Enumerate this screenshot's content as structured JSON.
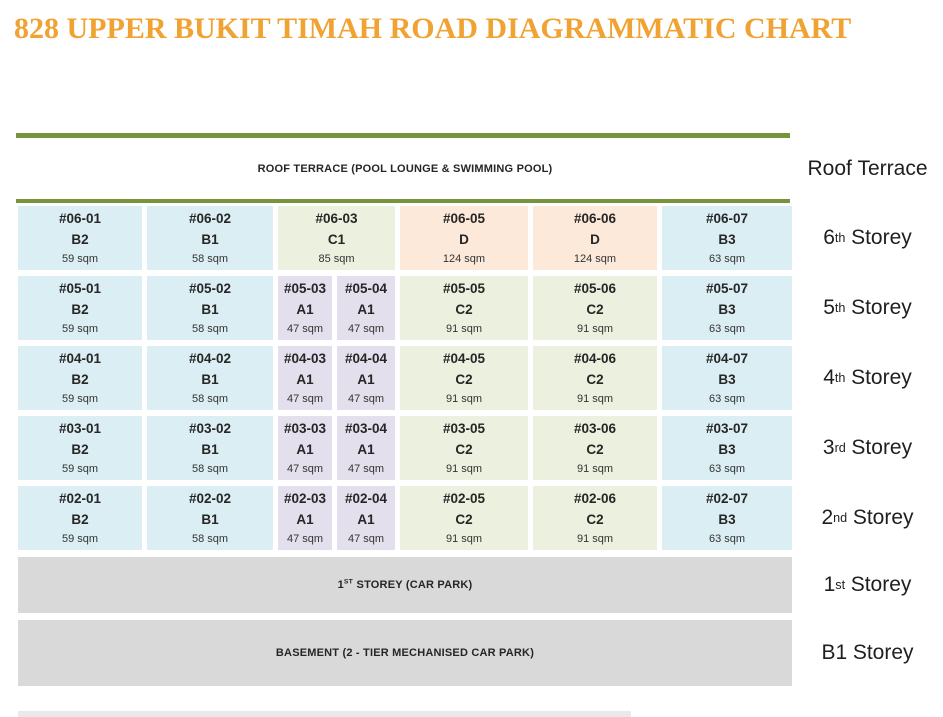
{
  "title": "828 UPPER BUKIT TIMAH ROAD DIAGRAMMATIC CHART",
  "colors": {
    "title_text": "#F0A232",
    "divider_green": "#77933C",
    "banner_gray": "#D9D9D9",
    "unit_fills": {
      "blue": "#DAEEF3",
      "green": "#EBF1DE",
      "purple": "#E4DFEC",
      "peach": "#FDE9D9"
    }
  },
  "roof": {
    "banner": "ROOF TERRACE (POOL LOUNGE & SWIMMING POOL)",
    "side": {
      "pre": "Roof",
      "sup": "",
      "post": "Terrace"
    }
  },
  "floors": [
    {
      "side": {
        "pre": "6",
        "sup": "th",
        "post": "Storey"
      },
      "units": [
        {
          "no": "#06-01",
          "type": "B2",
          "size": "59 sqm",
          "color": "blue",
          "span": 1
        },
        {
          "no": "#06-02",
          "type": "B1",
          "size": "58 sqm",
          "color": "blue",
          "span": 1
        },
        {
          "no": "#06-03",
          "type": "C1",
          "size": "85 sqm",
          "color": "green",
          "span": 2
        },
        {
          "no": "#06-05",
          "type": "D",
          "size": "124 sqm",
          "color": "peach",
          "span": 1
        },
        {
          "no": "#06-06",
          "type": "D",
          "size": "124 sqm",
          "color": "peach",
          "span": 1
        },
        {
          "no": "#06-07",
          "type": "B3",
          "size": "63 sqm",
          "color": "blue",
          "span": 1
        }
      ]
    },
    {
      "side": {
        "pre": "5",
        "sup": "th",
        "post": "Storey"
      },
      "units": [
        {
          "no": "#05-01",
          "type": "B2",
          "size": "59 sqm",
          "color": "blue",
          "span": 1
        },
        {
          "no": "#05-02",
          "type": "B1",
          "size": "58 sqm",
          "color": "blue",
          "span": 1
        },
        {
          "no": "#05-03",
          "type": "A1",
          "size": "47 sqm",
          "color": "purple",
          "span": 1
        },
        {
          "no": "#05-04",
          "type": "A1",
          "size": "47 sqm",
          "color": "purple",
          "span": 1
        },
        {
          "no": "#05-05",
          "type": "C2",
          "size": "91 sqm",
          "color": "green",
          "span": 1
        },
        {
          "no": "#05-06",
          "type": "C2",
          "size": "91 sqm",
          "color": "green",
          "span": 1
        },
        {
          "no": "#05-07",
          "type": "B3",
          "size": "63 sqm",
          "color": "blue",
          "span": 1
        }
      ]
    },
    {
      "side": {
        "pre": "4",
        "sup": "th",
        "post": "Storey"
      },
      "units": [
        {
          "no": "#04-01",
          "type": "B2",
          "size": "59 sqm",
          "color": "blue",
          "span": 1
        },
        {
          "no": "#04-02",
          "type": "B1",
          "size": "58 sqm",
          "color": "blue",
          "span": 1
        },
        {
          "no": "#04-03",
          "type": "A1",
          "size": "47 sqm",
          "color": "purple",
          "span": 1
        },
        {
          "no": "#04-04",
          "type": "A1",
          "size": "47 sqm",
          "color": "purple",
          "span": 1
        },
        {
          "no": "#04-05",
          "type": "C2",
          "size": "91 sqm",
          "color": "green",
          "span": 1
        },
        {
          "no": "#04-06",
          "type": "C2",
          "size": "91 sqm",
          "color": "green",
          "span": 1
        },
        {
          "no": "#04-07",
          "type": "B3",
          "size": "63 sqm",
          "color": "blue",
          "span": 1
        }
      ]
    },
    {
      "side": {
        "pre": "3",
        "sup": "rd",
        "post": "Storey"
      },
      "units": [
        {
          "no": "#03-01",
          "type": "B2",
          "size": "59 sqm",
          "color": "blue",
          "span": 1
        },
        {
          "no": "#03-02",
          "type": "B1",
          "size": "58 sqm",
          "color": "blue",
          "span": 1
        },
        {
          "no": "#03-03",
          "type": "A1",
          "size": "47 sqm",
          "color": "purple",
          "span": 1
        },
        {
          "no": "#03-04",
          "type": "A1",
          "size": "47 sqm",
          "color": "purple",
          "span": 1
        },
        {
          "no": "#03-05",
          "type": "C2",
          "size": "91 sqm",
          "color": "green",
          "span": 1
        },
        {
          "no": "#03-06",
          "type": "C2",
          "size": "91 sqm",
          "color": "green",
          "span": 1
        },
        {
          "no": "#03-07",
          "type": "B3",
          "size": "63 sqm",
          "color": "blue",
          "span": 1
        }
      ]
    },
    {
      "side": {
        "pre": "2",
        "sup": "nd",
        "post": "Storey"
      },
      "units": [
        {
          "no": "#02-01",
          "type": "B2",
          "size": "59 sqm",
          "color": "blue",
          "span": 1
        },
        {
          "no": "#02-02",
          "type": "B1",
          "size": "58 sqm",
          "color": "blue",
          "span": 1
        },
        {
          "no": "#02-03",
          "type": "A1",
          "size": "47 sqm",
          "color": "purple",
          "span": 1
        },
        {
          "no": "#02-04",
          "type": "A1",
          "size": "47 sqm",
          "color": "purple",
          "span": 1
        },
        {
          "no": "#02-05",
          "type": "C2",
          "size": "91 sqm",
          "color": "green",
          "span": 1
        },
        {
          "no": "#02-06",
          "type": "C2",
          "size": "91 sqm",
          "color": "green",
          "span": 1
        },
        {
          "no": "#02-07",
          "type": "B3",
          "size": "63 sqm",
          "color": "blue",
          "span": 1
        }
      ]
    }
  ],
  "carpark": {
    "banner_pre": "1",
    "banner_sup": "ST",
    "banner_post": "STOREY (CAR PARK)",
    "side": {
      "pre": "1",
      "sup": "st",
      "post": "Storey"
    }
  },
  "basement": {
    "banner": "BASEMENT (2 - TIER MECHANISED CAR PARK)",
    "side": {
      "pre": "B1",
      "sup": "",
      "post": "Storey"
    }
  }
}
